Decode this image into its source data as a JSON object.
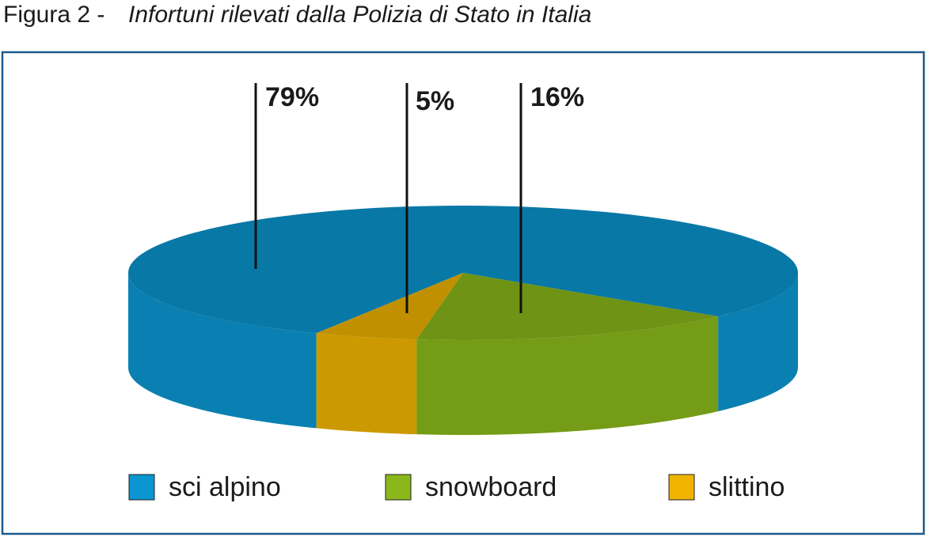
{
  "chart_data": {
    "type": "pie",
    "figure_label": "Figura 2 -",
    "title": "Infortuni rilevati dalla Polizia di Stato in Italia",
    "categories": [
      "sci alpino",
      "snowboard",
      "slittino"
    ],
    "values": [
      79,
      16,
      5
    ],
    "value_labels": [
      "79%",
      "16%",
      "5%"
    ],
    "colors": [
      "#0a96d0",
      "#8ab81a",
      "#f0b400"
    ],
    "legend": "bottom"
  }
}
